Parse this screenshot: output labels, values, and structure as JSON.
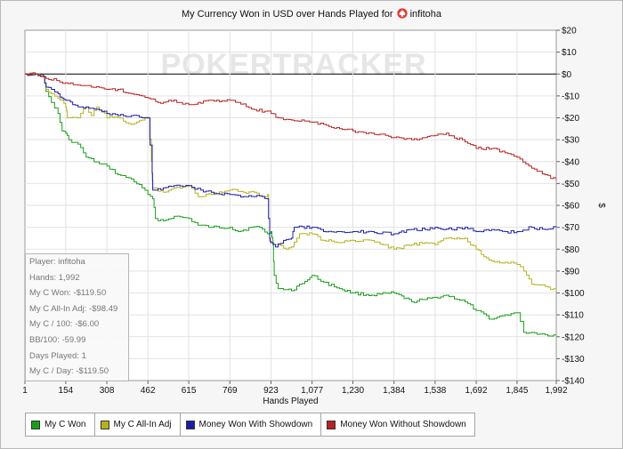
{
  "title": {
    "text": "My Currency Won in USD over Hands Played for",
    "player": "infitoha",
    "site_icon": "pokerstars-spade-icon"
  },
  "watermark": "POKERTRACKER",
  "info_box": {
    "lines": [
      "Player: infitoha",
      "Hands: 1,992",
      "My C Won: -$119.50",
      "My C All-In Adj: -$98.49",
      "My C / 100: -$6.00",
      "BB/100: -59.99",
      "Days Played: 1",
      "My C / Day: -$119.50"
    ]
  },
  "chart_data": {
    "type": "line",
    "title": "My Currency Won in USD over Hands Played for infitoha",
    "xlabel": "Hands Played",
    "ylabel": "$",
    "xlim": [
      1,
      1992
    ],
    "ylim": [
      -140,
      20
    ],
    "x_ticks": [
      1,
      154,
      308,
      462,
      615,
      769,
      923,
      1077,
      1230,
      1384,
      1538,
      1692,
      1845,
      1992
    ],
    "x_tick_labels": [
      "1",
      "154",
      "308",
      "462",
      "615",
      "769",
      "923",
      "1,077",
      "1,230",
      "1,384",
      "1,538",
      "1,692",
      "1,845",
      "1,992"
    ],
    "y_ticks": [
      20,
      10,
      0,
      -10,
      -20,
      -30,
      -40,
      -50,
      -60,
      -70,
      -80,
      -90,
      -100,
      -110,
      -120,
      -130,
      -140
    ],
    "y_tick_labels": [
      "$20",
      "$10",
      "$0",
      "-$10",
      "-$20",
      "-$30",
      "-$40",
      "-$50",
      "-$60",
      "-$70",
      "-$80",
      "-$90",
      "-$100",
      "-$110",
      "-$120",
      "-$130",
      "-$140"
    ],
    "y_axis_side": "right",
    "grid": true,
    "legend_position": "bottom",
    "series": [
      {
        "name": "My C Won",
        "color": "#1a9e1a",
        "points": [
          [
            1,
            0
          ],
          [
            40,
            0
          ],
          [
            70,
            -1
          ],
          [
            80,
            -8
          ],
          [
            100,
            -13
          ],
          [
            125,
            -18
          ],
          [
            140,
            -26
          ],
          [
            154,
            -27
          ],
          [
            165,
            -30
          ],
          [
            200,
            -32
          ],
          [
            230,
            -38
          ],
          [
            280,
            -41
          ],
          [
            308,
            -42
          ],
          [
            350,
            -46
          ],
          [
            400,
            -48
          ],
          [
            440,
            -52
          ],
          [
            462,
            -55
          ],
          [
            480,
            -57
          ],
          [
            490,
            -66
          ],
          [
            520,
            -67
          ],
          [
            560,
            -65
          ],
          [
            615,
            -66
          ],
          [
            650,
            -69
          ],
          [
            700,
            -70
          ],
          [
            769,
            -70
          ],
          [
            800,
            -72
          ],
          [
            850,
            -70
          ],
          [
            880,
            -70
          ],
          [
            910,
            -73
          ],
          [
            923,
            -72
          ],
          [
            930,
            -78
          ],
          [
            935,
            -92
          ],
          [
            950,
            -98
          ],
          [
            1000,
            -99
          ],
          [
            1030,
            -96
          ],
          [
            1060,
            -94
          ],
          [
            1077,
            -92
          ],
          [
            1120,
            -95
          ],
          [
            1180,
            -98
          ],
          [
            1230,
            -100
          ],
          [
            1300,
            -101
          ],
          [
            1384,
            -100
          ],
          [
            1450,
            -104
          ],
          [
            1500,
            -103
          ],
          [
            1538,
            -102
          ],
          [
            1580,
            -101
          ],
          [
            1650,
            -104
          ],
          [
            1692,
            -108
          ],
          [
            1750,
            -112
          ],
          [
            1800,
            -110
          ],
          [
            1845,
            -109
          ],
          [
            1870,
            -118
          ],
          [
            1900,
            -118
          ],
          [
            1950,
            -119
          ],
          [
            1992,
            -119.5
          ]
        ]
      },
      {
        "name": "My C All-In Adj",
        "color": "#b5b21e",
        "points": [
          [
            1,
            0
          ],
          [
            40,
            0
          ],
          [
            70,
            -1
          ],
          [
            80,
            -7
          ],
          [
            100,
            -9
          ],
          [
            125,
            -11
          ],
          [
            140,
            -12
          ],
          [
            154,
            -15
          ],
          [
            160,
            -20
          ],
          [
            200,
            -20
          ],
          [
            230,
            -15
          ],
          [
            250,
            -19
          ],
          [
            270,
            -15
          ],
          [
            290,
            -17
          ],
          [
            308,
            -20
          ],
          [
            350,
            -20
          ],
          [
            400,
            -23
          ],
          [
            440,
            -21
          ],
          [
            462,
            -20
          ],
          [
            475,
            -40
          ],
          [
            480,
            -52
          ],
          [
            520,
            -54
          ],
          [
            560,
            -52
          ],
          [
            615,
            -51
          ],
          [
            650,
            -56
          ],
          [
            700,
            -55
          ],
          [
            769,
            -53
          ],
          [
            820,
            -54
          ],
          [
            860,
            -54
          ],
          [
            890,
            -56
          ],
          [
            910,
            -55
          ],
          [
            918,
            -76
          ],
          [
            923,
            -77
          ],
          [
            950,
            -78
          ],
          [
            980,
            -80
          ],
          [
            1000,
            -79
          ],
          [
            1030,
            -73
          ],
          [
            1077,
            -73
          ],
          [
            1120,
            -76
          ],
          [
            1180,
            -77
          ],
          [
            1230,
            -76
          ],
          [
            1300,
            -76
          ],
          [
            1384,
            -80
          ],
          [
            1450,
            -78
          ],
          [
            1500,
            -77
          ],
          [
            1538,
            -78
          ],
          [
            1580,
            -75
          ],
          [
            1650,
            -75
          ],
          [
            1692,
            -80
          ],
          [
            1740,
            -85
          ],
          [
            1800,
            -86
          ],
          [
            1845,
            -87
          ],
          [
            1870,
            -90
          ],
          [
            1900,
            -96
          ],
          [
            1950,
            -97
          ],
          [
            1992,
            -98.5
          ]
        ]
      },
      {
        "name": "Money Won With Showdown",
        "color": "#1c1ca8",
        "points": [
          [
            1,
            0
          ],
          [
            40,
            0
          ],
          [
            70,
            -1
          ],
          [
            80,
            -6
          ],
          [
            100,
            -7
          ],
          [
            125,
            -9
          ],
          [
            140,
            -11
          ],
          [
            154,
            -12
          ],
          [
            180,
            -14
          ],
          [
            200,
            -15
          ],
          [
            230,
            -15
          ],
          [
            270,
            -16
          ],
          [
            308,
            -18
          ],
          [
            350,
            -19
          ],
          [
            400,
            -19
          ],
          [
            440,
            -20
          ],
          [
            462,
            -20
          ],
          [
            478,
            -45
          ],
          [
            480,
            -53
          ],
          [
            520,
            -52
          ],
          [
            560,
            -51
          ],
          [
            615,
            -51
          ],
          [
            660,
            -53
          ],
          [
            700,
            -54
          ],
          [
            769,
            -55
          ],
          [
            820,
            -56
          ],
          [
            860,
            -56
          ],
          [
            890,
            -56
          ],
          [
            910,
            -57
          ],
          [
            918,
            -75
          ],
          [
            923,
            -77
          ],
          [
            940,
            -79
          ],
          [
            970,
            -76
          ],
          [
            1000,
            -75
          ],
          [
            1010,
            -70
          ],
          [
            1077,
            -70
          ],
          [
            1120,
            -72
          ],
          [
            1180,
            -72
          ],
          [
            1230,
            -72
          ],
          [
            1300,
            -72
          ],
          [
            1384,
            -73
          ],
          [
            1450,
            -71
          ],
          [
            1500,
            -71
          ],
          [
            1538,
            -70
          ],
          [
            1600,
            -71
          ],
          [
            1650,
            -70
          ],
          [
            1692,
            -72
          ],
          [
            1750,
            -71
          ],
          [
            1800,
            -72
          ],
          [
            1845,
            -72
          ],
          [
            1900,
            -70
          ],
          [
            1950,
            -71
          ],
          [
            1992,
            -70
          ]
        ]
      },
      {
        "name": "Money Won Without Showdown",
        "color": "#b82222",
        "points": [
          [
            1,
            0
          ],
          [
            40,
            0
          ],
          [
            80,
            -2
          ],
          [
            120,
            -3
          ],
          [
            154,
            -4
          ],
          [
            200,
            -5
          ],
          [
            250,
            -6
          ],
          [
            308,
            -7
          ],
          [
            350,
            -7
          ],
          [
            400,
            -9
          ],
          [
            440,
            -10
          ],
          [
            462,
            -11
          ],
          [
            500,
            -13
          ],
          [
            540,
            -12
          ],
          [
            580,
            -13
          ],
          [
            615,
            -14
          ],
          [
            650,
            -13
          ],
          [
            700,
            -12
          ],
          [
            769,
            -12
          ],
          [
            800,
            -13
          ],
          [
            850,
            -16
          ],
          [
            900,
            -17
          ],
          [
            923,
            -18
          ],
          [
            950,
            -20
          ],
          [
            1000,
            -21
          ],
          [
            1077,
            -22
          ],
          [
            1120,
            -23
          ],
          [
            1180,
            -25
          ],
          [
            1230,
            -26
          ],
          [
            1300,
            -27
          ],
          [
            1384,
            -29
          ],
          [
            1450,
            -30
          ],
          [
            1500,
            -29
          ],
          [
            1538,
            -28
          ],
          [
            1580,
            -27
          ],
          [
            1650,
            -31
          ],
          [
            1692,
            -34
          ],
          [
            1750,
            -34
          ],
          [
            1800,
            -36
          ],
          [
            1845,
            -38
          ],
          [
            1900,
            -43
          ],
          [
            1950,
            -46
          ],
          [
            1992,
            -48.5
          ]
        ]
      }
    ]
  }
}
